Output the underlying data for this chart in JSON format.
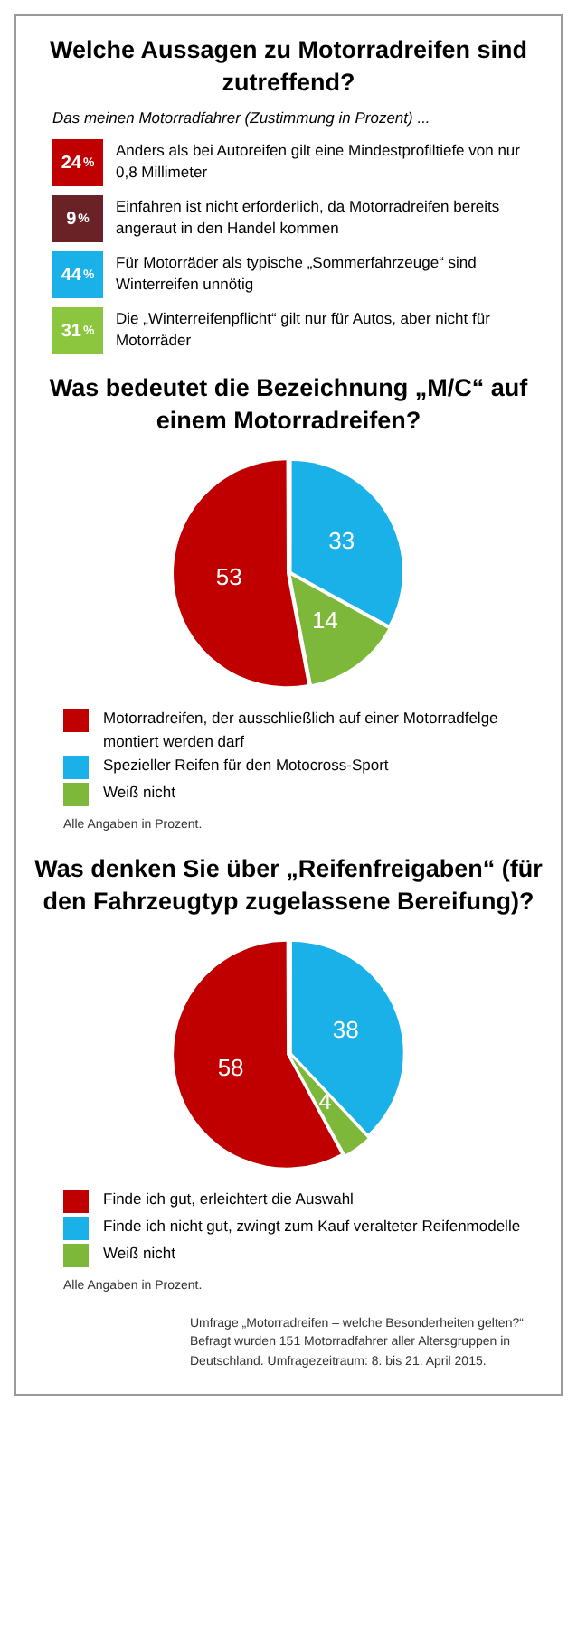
{
  "chart_data": [
    {
      "type": "other",
      "title": "Welche Aussagen zu Motorradreifen sind zutreffend?",
      "subtitle": "Das meinen Motorradfahrer (Zustimmung in Prozent) ...",
      "categories": [
        "Anders als bei Autoreifen gilt eine Mindestprofiltiefe von nur 0,8 Millimeter",
        "Einfahren ist nicht erforderlich, da Motorradreifen bereits angeraut in den Handel kommen",
        "Für Motorräder als typische „Sommerfahrzeuge“ sind Winterreifen unnötig",
        "Die „Winterreifenpflicht“ gilt nur für Autos, aber nicht für Motorräder"
      ],
      "values": [
        24,
        9,
        44,
        31
      ],
      "value_labels": [
        "24%",
        "9%",
        "44%",
        "31%"
      ],
      "colors": [
        "#c00000",
        "#6b2226",
        "#1ab0e8",
        "#8cc63f"
      ]
    },
    {
      "type": "pie",
      "title": "Was bedeutet die Bezeichnung „M/C“ auf einem Motorradreifen?",
      "categories": [
        "Motorradreifen, der ausschließlich auf einer Motorradfelge montiert werden darf",
        "Spezieller Reifen für den Motocross-Sport",
        "Weiß nicht"
      ],
      "values": [
        53,
        33,
        14
      ],
      "colors": [
        "#c00000",
        "#1ab0e8",
        "#7db83a"
      ],
      "data_labels": true,
      "legend": "bottom",
      "annotations": [
        "Alle Angaben in Prozent."
      ]
    },
    {
      "type": "pie",
      "title": "Was denken Sie über „Reifenfreigaben“ (für den Fahrzeugtyp zugelassene Bereifung)?",
      "categories": [
        "Finde ich gut, erleichtert die Auswahl",
        "Finde ich nicht gut, zwingt zum Kauf veralteter Reifenmodelle",
        "Weiß nicht"
      ],
      "values": [
        58,
        38,
        4
      ],
      "colors": [
        "#c00000",
        "#1ab0e8",
        "#7db83a"
      ],
      "data_labels": true,
      "legend": "bottom",
      "annotations": [
        "Alle Angaben in Prozent.",
        "Umfrage „Motorradreifen – welche Besonderheiten gelten?“ Befragt wurden 151 Motorradfahrer aller Altersgruppen in Deutschland. Umfragezeitraum: 8. bis 21. April 2015."
      ]
    }
  ]
}
